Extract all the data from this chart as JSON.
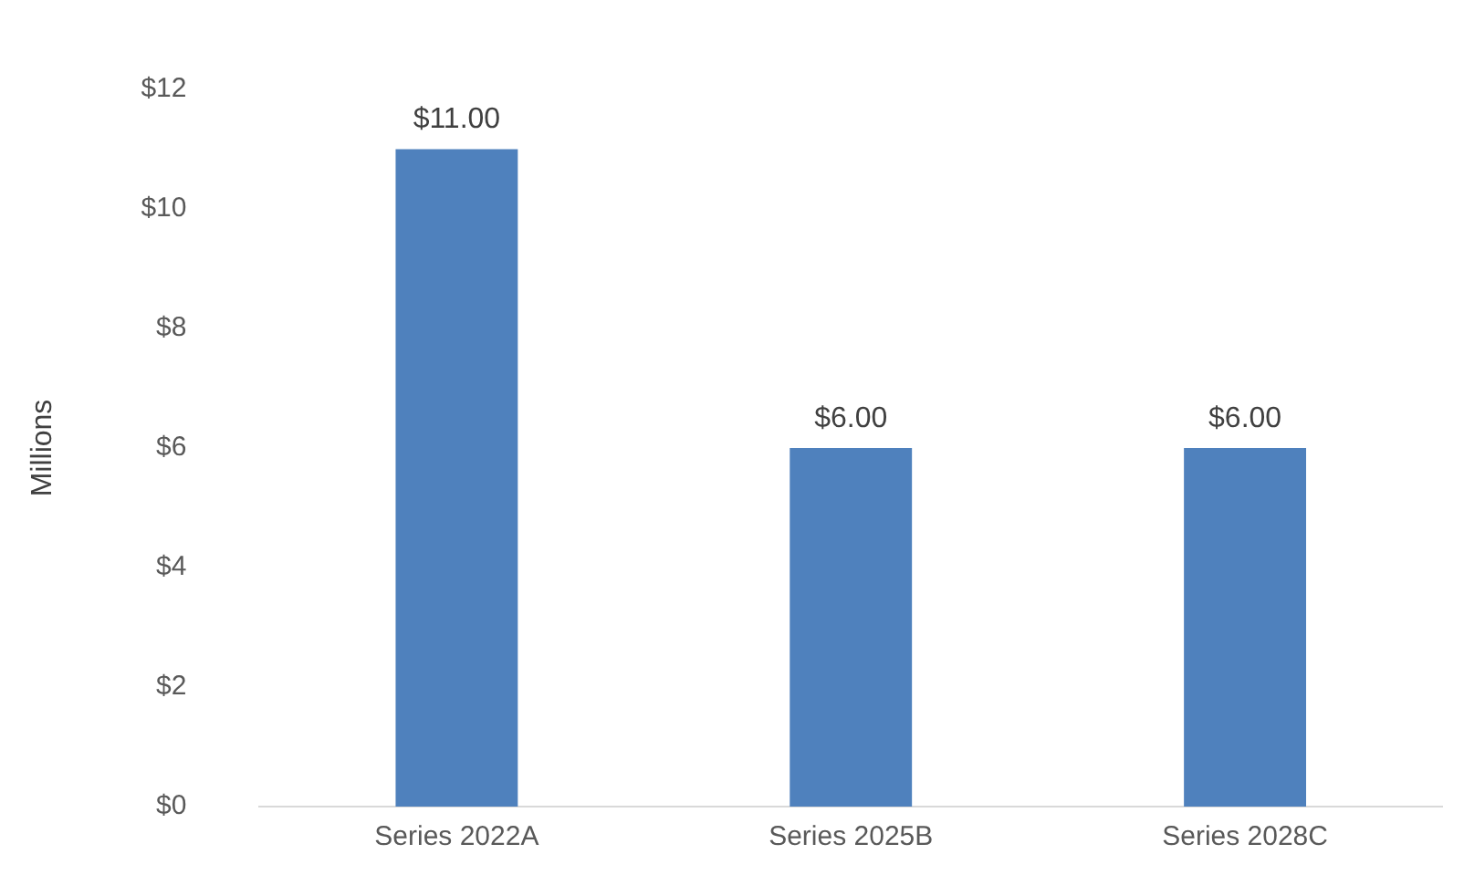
{
  "chart_data": {
    "type": "bar",
    "ylabel": "Millions",
    "categories": [
      "Series 2022A",
      "Series 2025B",
      "Series 2028C"
    ],
    "values": [
      11,
      6,
      6
    ],
    "color": "#4f81bd",
    "value_labels": [
      "$11.00",
      "$6.00",
      "$6.00"
    ],
    "ylim": [
      0,
      12
    ],
    "yticks": [
      {
        "value": 0,
        "label": "$0"
      },
      {
        "value": 2,
        "label": "$2"
      },
      {
        "value": 4,
        "label": "$4"
      },
      {
        "value": 6,
        "label": "$6"
      },
      {
        "value": 8,
        "label": "$8"
      },
      {
        "value": 10,
        "label": "$10"
      },
      {
        "value": 12,
        "label": "$12"
      }
    ],
    "grid": false,
    "legend": false
  }
}
